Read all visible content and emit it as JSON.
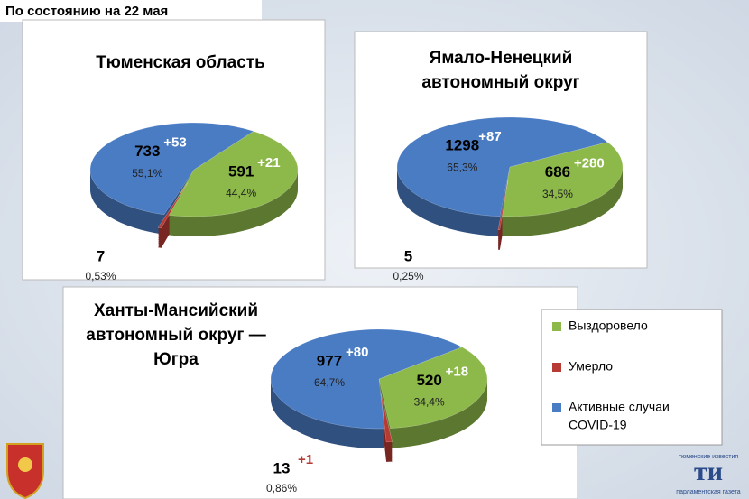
{
  "header": "По состоянию на 22 мая",
  "legend": {
    "items": [
      {
        "name": [
          "Выздоровело"
        ],
        "color": "#8db84a"
      },
      {
        "name": [
          "Умерло"
        ],
        "color": "#b83a35"
      },
      {
        "name": [
          "Активные случаи",
          "COVID-19"
        ],
        "color": "#4a7cc4"
      }
    ]
  },
  "chart_data": [
    {
      "type": "pie",
      "title": [
        "Тюменская область"
      ],
      "values": [
        591,
        7,
        733
      ],
      "increment_labels": [
        "+21",
        null,
        "+53"
      ],
      "percent_labels": [
        "44,4%",
        "0,53%",
        "55,1%"
      ]
    },
    {
      "type": "pie",
      "title": [
        "Ямало-Ненецкий",
        "автономный округ"
      ],
      "values": [
        686,
        5,
        1298
      ],
      "increment_labels": [
        "+280",
        null,
        "+87"
      ],
      "percent_labels": [
        "34,5%",
        "0,25%",
        "65,3%"
      ]
    },
    {
      "type": "pie",
      "title": [
        "Ханты-Мансийский",
        "автономный округ —",
        "Югра"
      ],
      "values": [
        520,
        13,
        977
      ],
      "increment_labels": [
        "+18",
        "+1",
        "+80"
      ],
      "percent_labels": [
        "34,4%",
        "0,86%",
        "64,7%"
      ]
    }
  ],
  "logo": {
    "top": "тюменские известия",
    "mark": "ти",
    "bottom": "парламентская газета"
  }
}
